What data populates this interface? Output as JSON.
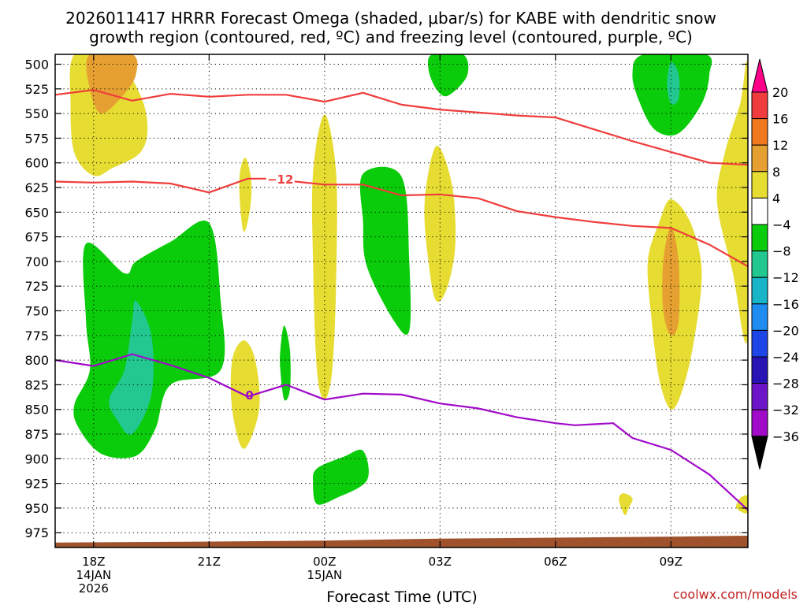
{
  "chart_data": {
    "type": "heatmap",
    "title_line1": "2026011417 HRRR Forecast Omega (shaded, μbar/s) for KABE with dendritic snow",
    "title_line2": "growth region (contoured, red, ºC) and freezing level (contoured, purple, ºC)",
    "xlabel": "Forecast Time (UTC)",
    "credit": "coolwx.com/models",
    "x_range_hours": [
      -1,
      17
    ],
    "y_range_hpa": [
      490,
      990
    ],
    "y_ticks": [
      500,
      525,
      550,
      575,
      600,
      625,
      650,
      675,
      700,
      725,
      750,
      775,
      800,
      825,
      850,
      875,
      900,
      925,
      950,
      975
    ],
    "x_ticks": [
      {
        "hour": 0,
        "lines": [
          "18Z",
          "14JAN",
          "2026"
        ]
      },
      {
        "hour": 3,
        "lines": [
          "21Z"
        ]
      },
      {
        "hour": 6,
        "lines": [
          "00Z",
          "15JAN"
        ]
      },
      {
        "hour": 9,
        "lines": [
          "03Z"
        ]
      },
      {
        "hour": 12,
        "lines": [
          "06Z"
        ]
      },
      {
        "hour": 15,
        "lines": [
          "09Z"
        ]
      }
    ],
    "colorbar": {
      "levels": [
        "20",
        "16",
        "12",
        "8",
        "4",
        "−4",
        "−8",
        "−12",
        "−16",
        "−20",
        "−24",
        "−28",
        "−32",
        "−36"
      ],
      "colors": [
        "#ff0088",
        "#f03c3c",
        "#f0781e",
        "#e6a032",
        "#e6dc32",
        "#ffffff",
        "#0acc0a",
        "#22c890",
        "#18b4c8",
        "#1e8cf0",
        "#1e46e6",
        "#2814b4",
        "#6e14c8",
        "#a00ac8",
        "#aaaaaa",
        "#000000"
      ]
    },
    "contour_labels": {
      "dgz": "−12",
      "freezing": "0"
    },
    "dgz_top_line": [
      [
        -1,
        531
      ],
      [
        0,
        526
      ],
      [
        1,
        537
      ],
      [
        2,
        530
      ],
      [
        3,
        533
      ],
      [
        4,
        531
      ],
      [
        5,
        531
      ],
      [
        6,
        538
      ],
      [
        7,
        529
      ],
      [
        8,
        541
      ],
      [
        9,
        546
      ],
      [
        10,
        549
      ],
      [
        11,
        552
      ],
      [
        12,
        554
      ],
      [
        13,
        566
      ],
      [
        14,
        578
      ],
      [
        15,
        589
      ],
      [
        16,
        600
      ],
      [
        17,
        602
      ]
    ],
    "dgz_bottom_line": [
      [
        -1,
        619
      ],
      [
        0,
        620
      ],
      [
        1,
        619
      ],
      [
        2,
        621
      ],
      [
        3,
        630
      ],
      [
        4,
        616
      ],
      [
        4.6,
        616
      ],
      [
        5,
        618
      ],
      [
        6,
        622
      ],
      [
        7,
        622
      ],
      [
        8,
        633
      ],
      [
        9,
        632
      ],
      [
        10,
        636
      ],
      [
        11,
        649
      ],
      [
        12,
        655
      ],
      [
        13,
        660
      ],
      [
        14,
        664
      ],
      [
        15,
        666
      ],
      [
        16,
        683
      ],
      [
        17,
        705
      ]
    ],
    "freezing_line": [
      [
        -1,
        800
      ],
      [
        0,
        806
      ],
      [
        1,
        794
      ],
      [
        2,
        805
      ],
      [
        3,
        818
      ],
      [
        4,
        837
      ],
      [
        5,
        825
      ],
      [
        6,
        840
      ],
      [
        7,
        834
      ],
      [
        8,
        835
      ],
      [
        9,
        844
      ],
      [
        10,
        849
      ],
      [
        11,
        858
      ],
      [
        12,
        864
      ],
      [
        12.5,
        866
      ],
      [
        13,
        865
      ],
      [
        13.5,
        864
      ],
      [
        14,
        879
      ],
      [
        15,
        891
      ],
      [
        16,
        916
      ],
      [
        17,
        952
      ]
    ],
    "omega_regions": [
      {
        "color": "#e6dc32",
        "pts": [
          [
            -0.5,
            490
          ],
          [
            0.5,
            490
          ],
          [
            1.2,
            530
          ],
          [
            1.4,
            565
          ],
          [
            1.2,
            590
          ],
          [
            0.5,
            605
          ],
          [
            0,
            613
          ],
          [
            -0.5,
            590
          ],
          [
            -0.6,
            540
          ]
        ]
      },
      {
        "color": "#e6a032",
        "pts": [
          [
            -0.1,
            490
          ],
          [
            1.0,
            490
          ],
          [
            1.1,
            510
          ],
          [
            0.8,
            530
          ],
          [
            0.2,
            550
          ],
          [
            -0.1,
            525
          ]
        ]
      },
      {
        "color": "#0acc0a",
        "pts": [
          [
            -0.2,
            682
          ],
          [
            0.8,
            712
          ],
          [
            1.1,
            700
          ],
          [
            2.0,
            680
          ],
          [
            3.0,
            661
          ],
          [
            3.3,
            740
          ],
          [
            3.3,
            810
          ],
          [
            2.0,
            825
          ],
          [
            1.6,
            870
          ],
          [
            1.1,
            897
          ],
          [
            0.2,
            895
          ],
          [
            -0.4,
            868
          ],
          [
            -0.5,
            845
          ],
          [
            -0.1,
            810
          ],
          [
            -0.2,
            760
          ]
        ]
      },
      {
        "color": "#22c890",
        "pts": [
          [
            1.1,
            740
          ],
          [
            1.5,
            775
          ],
          [
            1.5,
            835
          ],
          [
            1.0,
            875
          ],
          [
            0.6,
            860
          ],
          [
            0.4,
            840
          ],
          [
            0.8,
            810
          ],
          [
            1.0,
            760
          ]
        ]
      },
      {
        "color": "#e6dc32",
        "pts": [
          [
            3.9,
            780
          ],
          [
            4.2,
            800
          ],
          [
            4.3,
            850
          ],
          [
            3.9,
            890
          ],
          [
            3.6,
            850
          ],
          [
            3.6,
            800
          ]
        ]
      },
      {
        "color": "#e6dc32",
        "pts": [
          [
            3.95,
            595
          ],
          [
            4.1,
            620
          ],
          [
            4.05,
            650
          ],
          [
            3.9,
            670
          ],
          [
            3.8,
            640
          ],
          [
            3.8,
            610
          ]
        ]
      },
      {
        "color": "#0acc0a",
        "pts": [
          [
            4.95,
            765
          ],
          [
            5.1,
            790
          ],
          [
            5.1,
            830
          ],
          [
            4.95,
            840
          ],
          [
            4.85,
            810
          ],
          [
            4.85,
            790
          ]
        ]
      },
      {
        "color": "#e6dc32",
        "pts": [
          [
            6.0,
            551
          ],
          [
            6.3,
            610
          ],
          [
            6.3,
            720
          ],
          [
            6.2,
            810
          ],
          [
            6.0,
            840
          ],
          [
            5.8,
            810
          ],
          [
            5.7,
            700
          ],
          [
            5.7,
            610
          ]
        ]
      },
      {
        "color": "#0acc0a",
        "pts": [
          [
            7.0,
            611
          ],
          [
            8.0,
            614
          ],
          [
            8.2,
            700
          ],
          [
            8.2,
            770
          ],
          [
            7.8,
            760
          ],
          [
            7.1,
            705
          ],
          [
            7.0,
            660
          ]
        ]
      },
      {
        "color": "#0acc0a",
        "pts": [
          [
            5.8,
            910
          ],
          [
            6.5,
            898
          ],
          [
            7.0,
            892
          ],
          [
            7.1,
            922
          ],
          [
            6.3,
            940
          ],
          [
            5.8,
            946
          ],
          [
            5.7,
            925
          ]
        ]
      },
      {
        "color": "#e6dc32",
        "pts": [
          [
            8.9,
            583
          ],
          [
            9.3,
            620
          ],
          [
            9.4,
            680
          ],
          [
            9.2,
            725
          ],
          [
            8.9,
            740
          ],
          [
            8.7,
            700
          ],
          [
            8.6,
            640
          ]
        ]
      },
      {
        "color": "#0acc0a",
        "pts": [
          [
            8.8,
            490
          ],
          [
            9.6,
            490
          ],
          [
            9.7,
            512
          ],
          [
            9.2,
            532
          ],
          [
            8.9,
            525
          ],
          [
            8.7,
            505
          ]
        ]
      },
      {
        "color": "#0acc0a",
        "pts": [
          [
            14.3,
            490
          ],
          [
            15.9,
            490
          ],
          [
            16.0,
            510
          ],
          [
            15.8,
            540
          ],
          [
            15.2,
            570
          ],
          [
            14.6,
            567
          ],
          [
            14.2,
            540
          ],
          [
            14.0,
            510
          ]
        ]
      },
      {
        "color": "#22c890",
        "pts": [
          [
            15.0,
            498
          ],
          [
            15.2,
            510
          ],
          [
            15.2,
            535
          ],
          [
            15.0,
            540
          ],
          [
            14.9,
            520
          ]
        ]
      },
      {
        "color": "#e6dc32",
        "pts": [
          [
            15.0,
            637
          ],
          [
            15.5,
            660
          ],
          [
            15.8,
            710
          ],
          [
            15.6,
            780
          ],
          [
            15.3,
            830
          ],
          [
            15.0,
            850
          ],
          [
            14.7,
            820
          ],
          [
            14.5,
            760
          ],
          [
            14.4,
            700
          ],
          [
            14.7,
            660
          ]
        ]
      },
      {
        "color": "#e6a032",
        "pts": [
          [
            15.0,
            665
          ],
          [
            15.2,
            700
          ],
          [
            15.2,
            760
          ],
          [
            15.0,
            775
          ],
          [
            14.8,
            750
          ],
          [
            14.8,
            700
          ]
        ]
      },
      {
        "color": "#e6dc32",
        "pts": [
          [
            17.0,
            510
          ],
          [
            17.0,
            775
          ],
          [
            16.6,
            710
          ],
          [
            16.2,
            640
          ],
          [
            16.4,
            590
          ],
          [
            16.8,
            540
          ]
        ]
      },
      {
        "color": "#e6dc32",
        "pts": [
          [
            13.75,
            935
          ],
          [
            14.0,
            940
          ],
          [
            13.9,
            950
          ],
          [
            13.8,
            957
          ],
          [
            13.65,
            942
          ]
        ]
      },
      {
        "color": "#e6dc32",
        "pts": [
          [
            17.0,
            938
          ],
          [
            17.0,
            955
          ],
          [
            16.7,
            950
          ],
          [
            16.8,
            940
          ]
        ]
      }
    ],
    "terrain": {
      "color": "#a0522d",
      "pts": [
        [
          -1,
          993
        ],
        [
          -1,
          985
        ],
        [
          3,
          984
        ],
        [
          6,
          983
        ],
        [
          9,
          981
        ],
        [
          12,
          980
        ],
        [
          15,
          979
        ],
        [
          17,
          978
        ],
        [
          17,
          993
        ]
      ]
    }
  }
}
